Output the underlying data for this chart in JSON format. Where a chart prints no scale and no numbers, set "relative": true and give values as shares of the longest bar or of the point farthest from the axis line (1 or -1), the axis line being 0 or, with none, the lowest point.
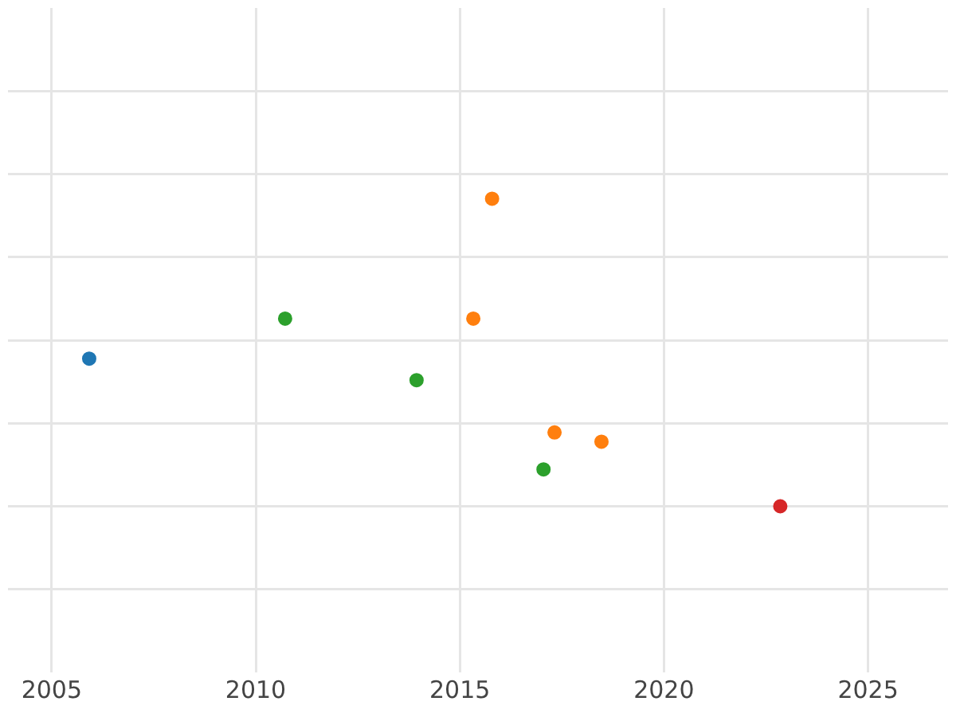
{
  "chart_data": {
    "type": "scatter",
    "relative": true,
    "xlim": [
      2003.93,
      2026.96
    ],
    "xticks": [
      2005,
      2010,
      2015,
      2020,
      2025
    ],
    "grid": true,
    "legend": false,
    "marker": "circle",
    "series": [
      {
        "color": "#1f77b4",
        "x": [
          2005.92
        ],
        "values": [
          0.48
        ]
      },
      {
        "color": "#2ca02c",
        "x": [
          2010.72,
          2013.94,
          2017.05
        ],
        "values": [
          0.61,
          0.41,
          0.12
        ]
      },
      {
        "color": "#ff7f0e",
        "x": [
          2015.79,
          2015.33,
          2017.32,
          2018.47
        ],
        "values": [
          1,
          0.61,
          0.24,
          0.21
        ]
      },
      {
        "color": "#d62728",
        "x": [
          2022.85
        ],
        "values": [
          0
        ]
      }
    ]
  }
}
